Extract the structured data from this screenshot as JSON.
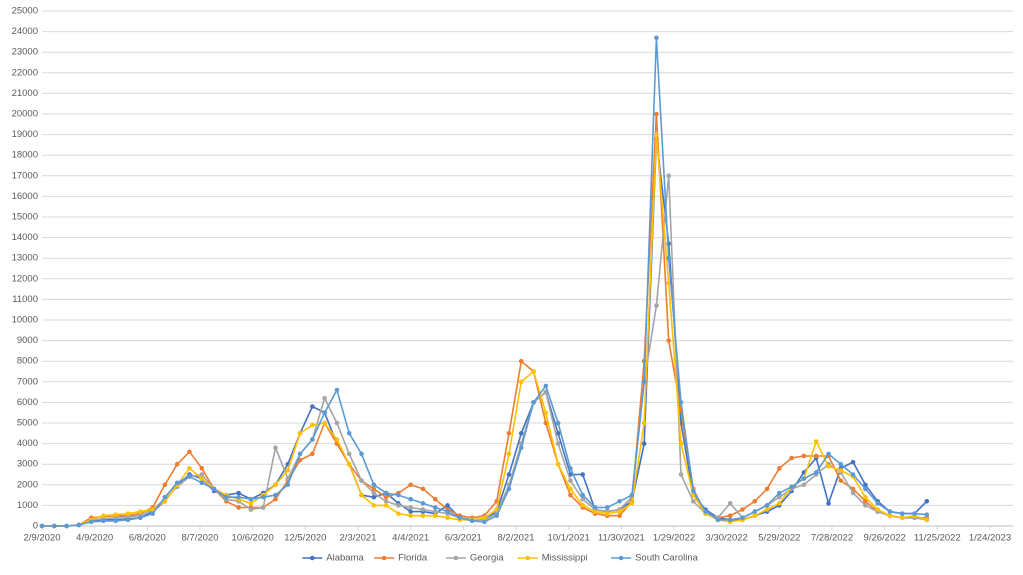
{
  "chart_data": {
    "type": "line",
    "x": [
      "2020-02-09",
      "2020-02-23",
      "2020-03-08",
      "2020-03-22",
      "2020-04-05",
      "2020-04-19",
      "2020-05-03",
      "2020-05-17",
      "2020-05-31",
      "2020-06-14",
      "2020-06-28",
      "2020-07-12",
      "2020-07-26",
      "2020-08-09",
      "2020-08-23",
      "2020-09-06",
      "2020-09-20",
      "2020-10-04",
      "2020-10-18",
      "2020-11-01",
      "2020-11-15",
      "2020-11-29",
      "2020-12-13",
      "2020-12-27",
      "2021-01-10",
      "2021-01-24",
      "2021-02-07",
      "2021-02-21",
      "2021-03-07",
      "2021-03-21",
      "2021-04-04",
      "2021-04-18",
      "2021-05-02",
      "2021-05-16",
      "2021-05-30",
      "2021-06-13",
      "2021-06-27",
      "2021-07-11",
      "2021-07-25",
      "2021-08-08",
      "2021-08-22",
      "2021-09-05",
      "2021-09-19",
      "2021-10-03",
      "2021-10-17",
      "2021-10-31",
      "2021-11-14",
      "2021-11-28",
      "2021-12-12",
      "2021-12-26",
      "2022-01-09",
      "2022-01-23",
      "2022-02-06",
      "2022-02-20",
      "2022-03-06",
      "2022-03-20",
      "2022-04-03",
      "2022-04-17",
      "2022-05-01",
      "2022-05-15",
      "2022-05-29",
      "2022-06-12",
      "2022-06-26",
      "2022-07-10",
      "2022-07-24",
      "2022-08-07",
      "2022-08-21",
      "2022-09-04",
      "2022-09-18",
      "2022-10-02",
      "2022-10-16",
      "2022-10-30",
      "2022-11-13"
    ],
    "series": [
      {
        "name": "Alabama",
        "color": "#4472c4",
        "values": [
          0,
          0,
          0,
          50,
          250,
          300,
          300,
          350,
          400,
          700,
          1200,
          2000,
          2500,
          2300,
          1700,
          1500,
          1600,
          1300,
          1600,
          2000,
          3000,
          4500,
          5800,
          5500,
          4000,
          3000,
          1500,
          1400,
          1600,
          1100,
          700,
          700,
          600,
          1000,
          400,
          300,
          300,
          700,
          2500,
          4500,
          6000,
          6500,
          4500,
          2500,
          2500,
          800,
          700,
          800,
          1200,
          4000,
          18800,
          13700,
          5000,
          1500,
          800,
          400,
          300,
          300,
          500,
          700,
          1000,
          1700,
          2600,
          3300,
          1100,
          2800,
          3100,
          2000,
          1200,
          700,
          600,
          600,
          1200
        ]
      },
      {
        "name": "Florida",
        "color": "#ed7d31",
        "values": [
          0,
          0,
          0,
          50,
          400,
          450,
          500,
          500,
          600,
          900,
          2000,
          3000,
          3600,
          2800,
          1800,
          1200,
          900,
          900,
          900,
          1300,
          2200,
          3200,
          3500,
          5000,
          4000,
          3000,
          2200,
          1800,
          1400,
          1600,
          2000,
          1800,
          1300,
          800,
          500,
          400,
          500,
          1200,
          4500,
          8000,
          7500,
          5000,
          3000,
          1500,
          900,
          600,
          500,
          500,
          1200,
          8000,
          20000,
          9000,
          5600,
          1800,
          600,
          400,
          500,
          800,
          1200,
          1800,
          2800,
          3300,
          3400,
          3400,
          3400,
          2200,
          1800,
          1200,
          700,
          500,
          400,
          400,
          400
        ]
      },
      {
        "name": "Georgia",
        "color": "#a5a5a5",
        "values": [
          0,
          0,
          0,
          50,
          300,
          350,
          400,
          450,
          500,
          800,
          1300,
          1900,
          2400,
          2500,
          1800,
          1300,
          1200,
          800,
          900,
          3800,
          2300,
          3500,
          4200,
          6200,
          5000,
          3500,
          2200,
          1600,
          1200,
          1000,
          900,
          800,
          700,
          600,
          400,
          300,
          300,
          600,
          2000,
          4000,
          6000,
          6500,
          4000,
          2200,
          1300,
          800,
          700,
          800,
          1400,
          7000,
          10700,
          17000,
          2500,
          1200,
          600,
          400,
          1100,
          400,
          700,
          1000,
          1400,
          1800,
          2000,
          2500,
          3000,
          2600,
          1600,
          1000,
          700,
          500,
          400,
          400,
          300
        ]
      },
      {
        "name": "Mississippi",
        "color": "#ffc000",
        "values": [
          0,
          0,
          0,
          50,
          300,
          500,
          550,
          600,
          700,
          800,
          1200,
          2000,
          2800,
          2300,
          1800,
          1500,
          1300,
          1100,
          1500,
          2000,
          2700,
          4500,
          4900,
          5000,
          4200,
          3000,
          1500,
          1000,
          1000,
          600,
          500,
          500,
          500,
          400,
          300,
          300,
          400,
          800,
          3500,
          7000,
          7500,
          5500,
          3000,
          1800,
          1000,
          700,
          600,
          700,
          1100,
          5000,
          19000,
          11800,
          4000,
          1500,
          600,
          300,
          200,
          300,
          500,
          800,
          1100,
          1900,
          2300,
          4100,
          2900,
          2700,
          2400,
          1400,
          800,
          500,
          400,
          500,
          300
        ]
      },
      {
        "name": "South Carolina",
        "color": "#5b9bd5",
        "values": [
          0,
          0,
          0,
          50,
          200,
          250,
          250,
          300,
          400,
          600,
          1400,
          2100,
          2400,
          2100,
          1800,
          1400,
          1400,
          1300,
          1400,
          1500,
          2000,
          3500,
          4200,
          5500,
          6600,
          4500,
          3500,
          2000,
          1600,
          1500,
          1300,
          1100,
          900,
          700,
          400,
          250,
          200,
          500,
          1800,
          3800,
          6000,
          6800,
          5000,
          2800,
          1500,
          900,
          900,
          1200,
          1500,
          7000,
          23700,
          13000,
          6000,
          1700,
          700,
          300,
          300,
          400,
          700,
          1000,
          1600,
          1900,
          2300,
          2600,
          3500,
          3000,
          2500,
          1800,
          1100,
          700,
          600,
          600,
          550
        ]
      }
    ],
    "xlim": [
      "2020-02-09",
      "2023-01-24"
    ],
    "xticks": [
      {
        "value": "2020-02-09",
        "label": "2/9/2020"
      },
      {
        "value": "2020-04-09",
        "label": "4/9/2020"
      },
      {
        "value": "2020-06-08",
        "label": "6/8/2020"
      },
      {
        "value": "2020-08-07",
        "label": "8/7/2020"
      },
      {
        "value": "2020-10-06",
        "label": "10/6/2020"
      },
      {
        "value": "2020-12-05",
        "label": "12/5/2020"
      },
      {
        "value": "2021-02-03",
        "label": "2/3/2021"
      },
      {
        "value": "2021-04-04",
        "label": "4/4/2021"
      },
      {
        "value": "2021-06-03",
        "label": "6/3/2021"
      },
      {
        "value": "2021-08-02",
        "label": "8/2/2021"
      },
      {
        "value": "2021-10-01",
        "label": "10/1/2021"
      },
      {
        "value": "2021-11-30",
        "label": "11/30/2021"
      },
      {
        "value": "2022-01-29",
        "label": "1/29/2022"
      },
      {
        "value": "2022-03-30",
        "label": "3/30/2022"
      },
      {
        "value": "2022-05-29",
        "label": "5/29/2022"
      },
      {
        "value": "2022-07-28",
        "label": "7/28/2022"
      },
      {
        "value": "2022-09-26",
        "label": "9/26/2022"
      },
      {
        "value": "2022-11-25",
        "label": "11/25/2022"
      },
      {
        "value": "2023-01-24",
        "label": "1/24/2023"
      }
    ],
    "ylim": [
      0,
      25000
    ],
    "yticks": [
      0,
      1000,
      2000,
      3000,
      4000,
      5000,
      6000,
      7000,
      8000,
      9000,
      10000,
      11000,
      12000,
      13000,
      14000,
      15000,
      16000,
      17000,
      18000,
      19000,
      20000,
      21000,
      22000,
      23000,
      24000,
      25000
    ],
    "grid": true,
    "legend": "bottom"
  }
}
